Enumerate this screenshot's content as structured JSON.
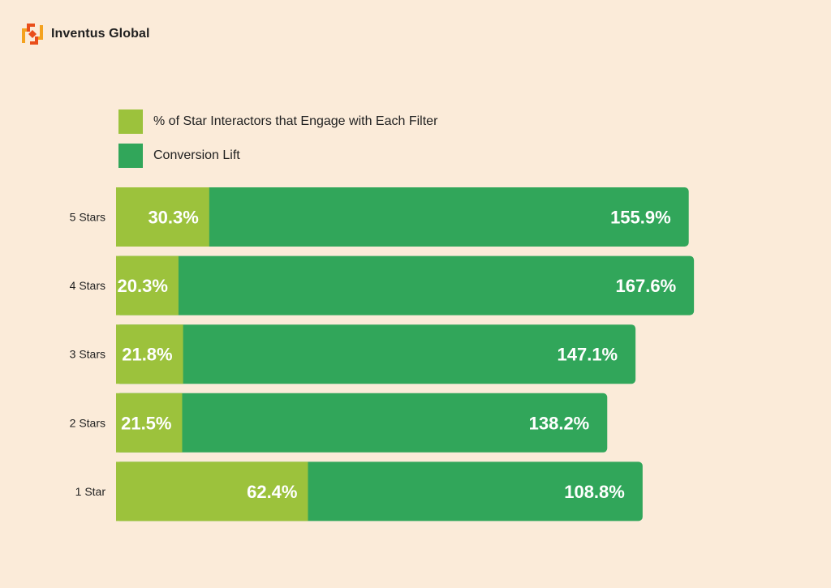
{
  "brand": {
    "name": "Inventus Global"
  },
  "colors": {
    "background": "#fbebd9",
    "engage": "#9cc23c",
    "lift": "#31a65a",
    "logo_primary": "#e94e1b",
    "logo_secondary": "#f4a21e"
  },
  "chart_data": {
    "type": "bar",
    "orientation": "horizontal",
    "stacked": true,
    "title": "",
    "xlabel": "",
    "ylabel": "",
    "legend_position": "top-left",
    "grid": false,
    "categories": [
      "5 Stars",
      "4 Stars",
      "3 Stars",
      "2 Stars",
      "1 Star"
    ],
    "series": [
      {
        "name": "% of Star Interactors that Engage with Each Filter",
        "values": [
          30.3,
          20.3,
          21.8,
          21.5,
          62.4
        ],
        "labels": [
          "30.3%",
          "20.3%",
          "21.8%",
          "21.5%",
          "62.4%"
        ]
      },
      {
        "name": "Conversion Lift",
        "values": [
          155.9,
          167.6,
          147.1,
          138.2,
          108.8
        ],
        "labels": [
          "155.9%",
          "167.6%",
          "147.1%",
          "138.2%",
          "108.8%"
        ]
      }
    ]
  }
}
